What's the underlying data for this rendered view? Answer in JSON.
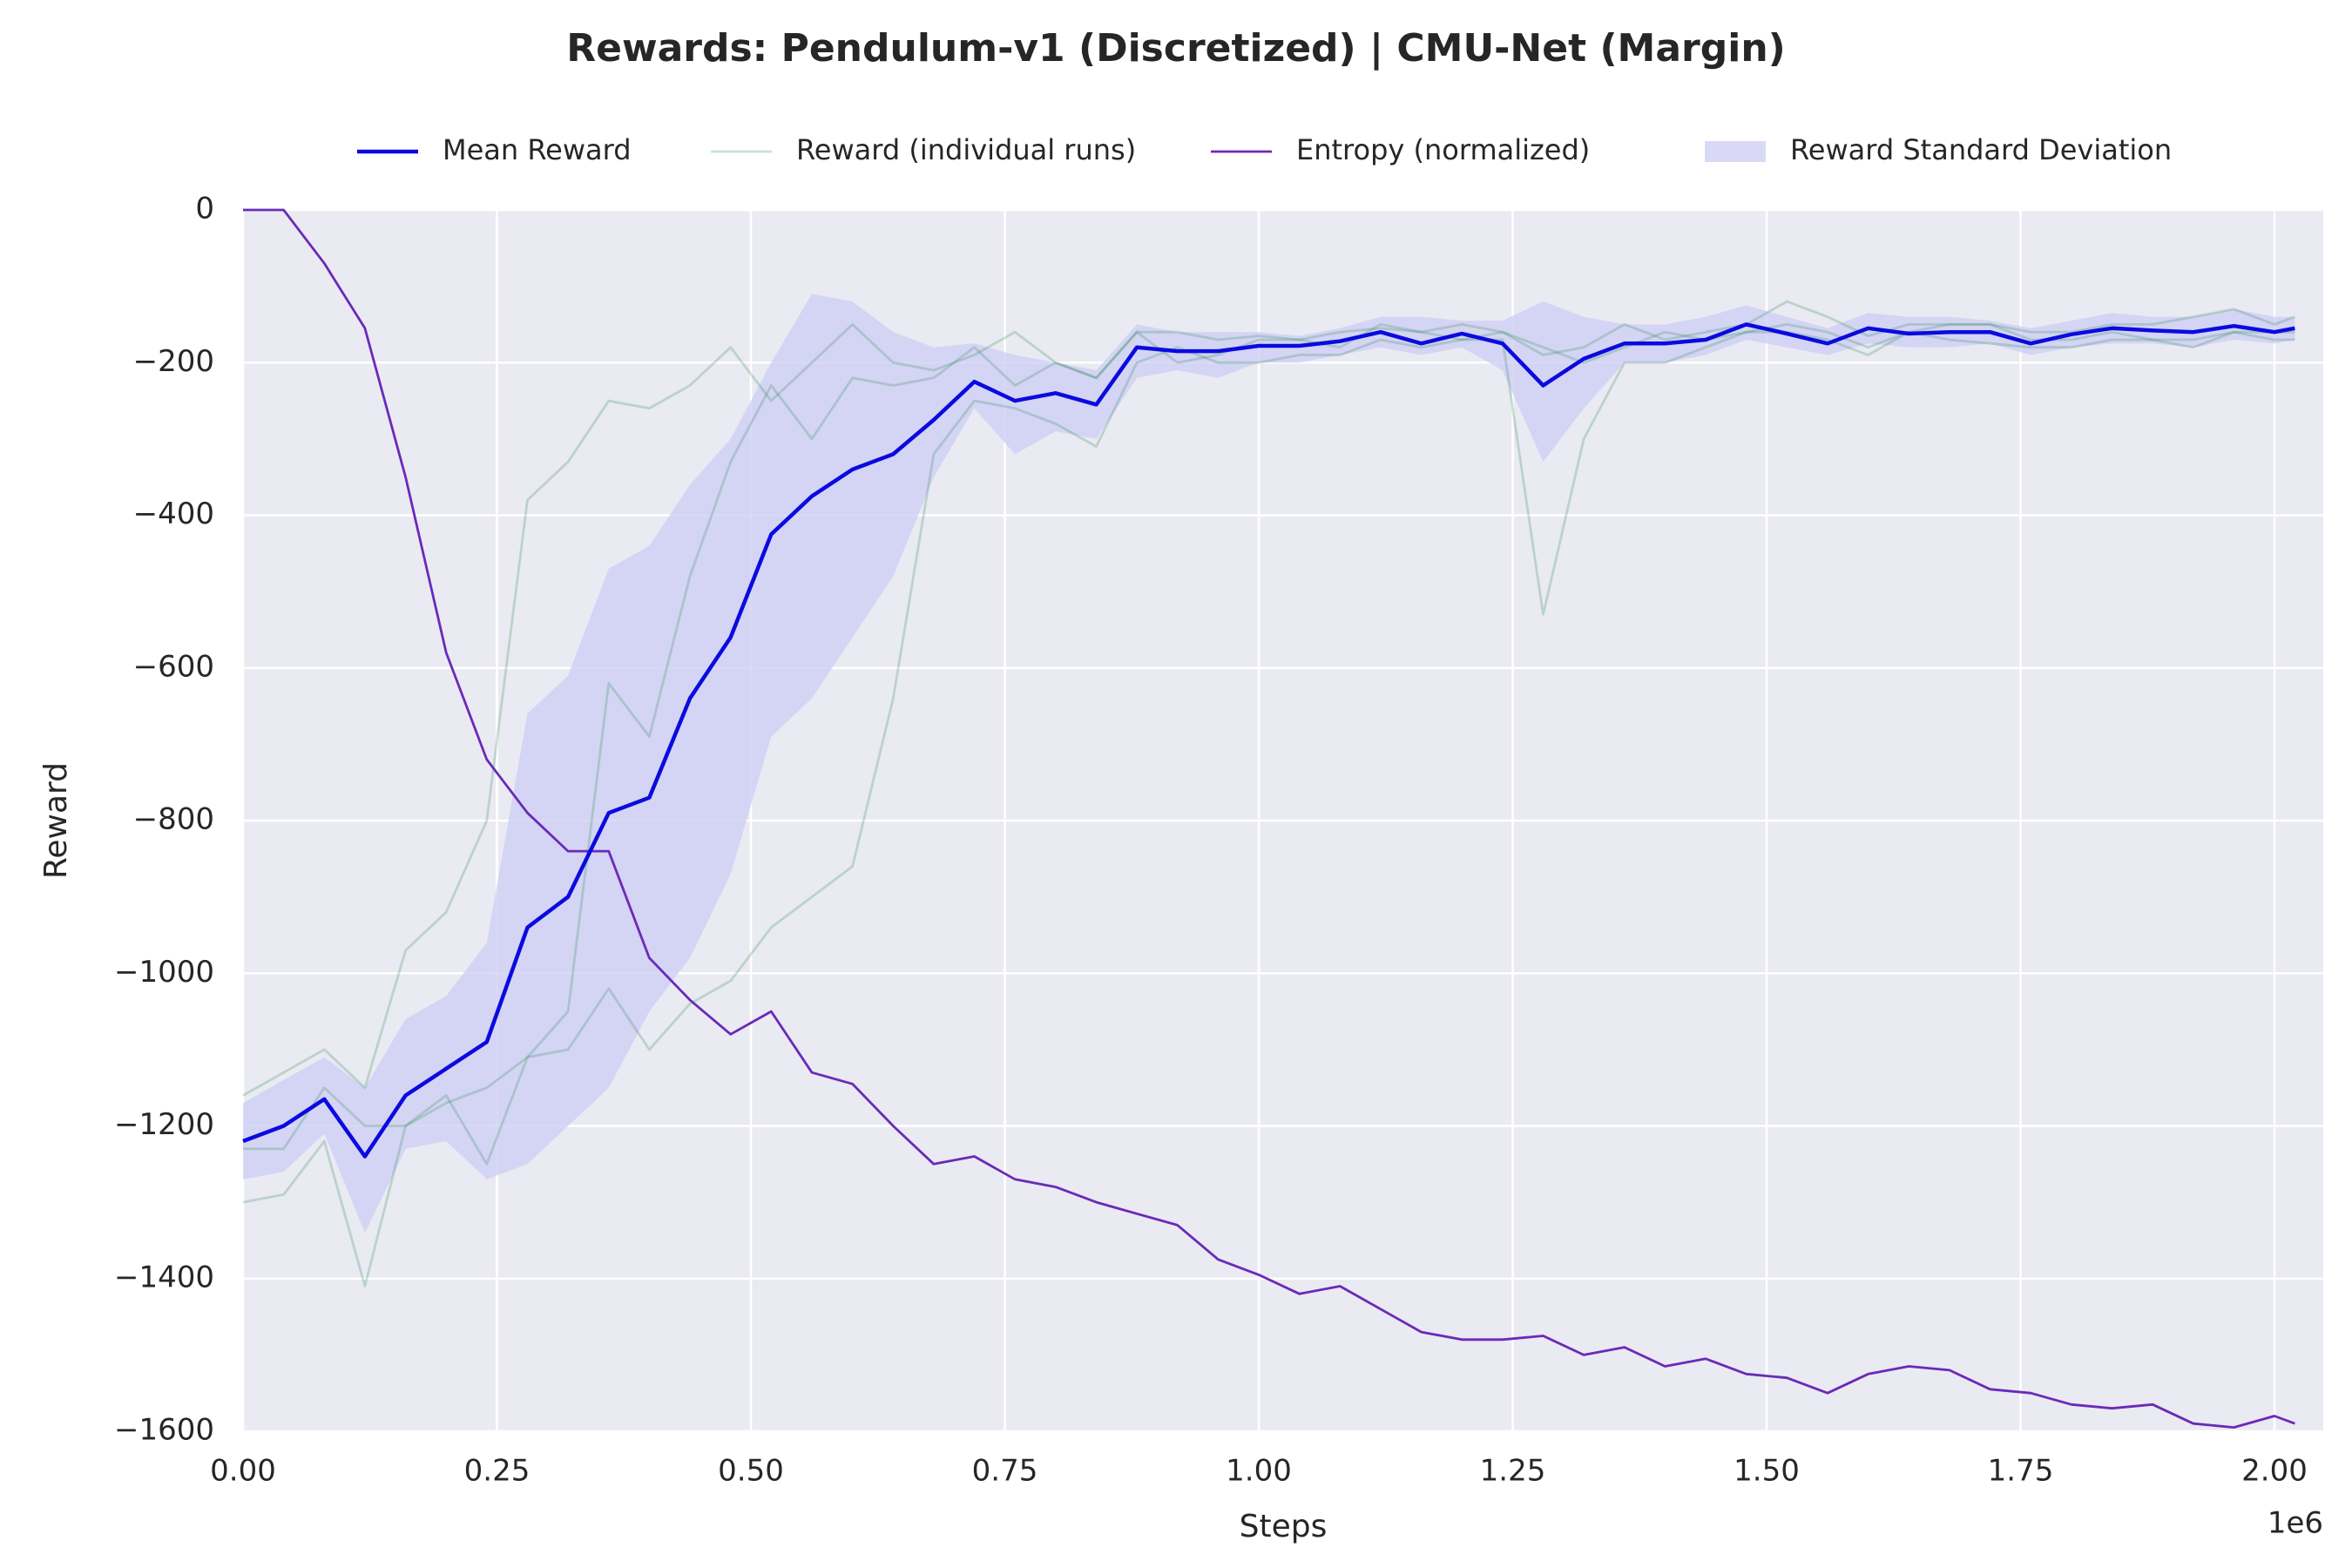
{
  "chart_data": {
    "type": "line",
    "title": "Rewards: Pendulum-v1 (Discretized) | CMU-Net (Margin)",
    "x_label": "Steps",
    "y_label": "Reward",
    "x_offset_label": "1e6",
    "legend": "top",
    "grid": true,
    "x": [
      0,
      40000,
      80000,
      120000,
      160000,
      200000,
      240000,
      280000,
      320000,
      360000,
      400000,
      440000,
      480000,
      520000,
      560000,
      600000,
      640000,
      680000,
      720000,
      760000,
      800000,
      840000,
      880000,
      920000,
      960000,
      1000000,
      1040000,
      1080000,
      1120000,
      1160000,
      1200000,
      1240000,
      1280000,
      1320000,
      1360000,
      1400000,
      1440000,
      1480000,
      1520000,
      1560000,
      1600000,
      1640000,
      1680000,
      1720000,
      1760000,
      1800000,
      1840000,
      1880000,
      1920000,
      1960000,
      2000000,
      2020000
    ],
    "xlim": [
      0,
      2048000
    ],
    "xticks": [
      {
        "value": 0,
        "label": "0.00"
      },
      {
        "value": 250000,
        "label": "0.25"
      },
      {
        "value": 500000,
        "label": "0.50"
      },
      {
        "value": 750000,
        "label": "0.75"
      },
      {
        "value": 1000000,
        "label": "1.00"
      },
      {
        "value": 1250000,
        "label": "1.25"
      },
      {
        "value": 1500000,
        "label": "1.50"
      },
      {
        "value": 1750000,
        "label": "1.75"
      },
      {
        "value": 2000000,
        "label": "2.00"
      }
    ],
    "ylim": [
      -1600,
      0
    ],
    "yticks": [
      0,
      {
        "value": -200,
        "label": "−200"
      },
      {
        "value": -400,
        "label": "−400"
      },
      {
        "value": -600,
        "label": "−600"
      },
      {
        "value": -800,
        "label": "−800"
      },
      {
        "value": -1000,
        "label": "−1000"
      },
      {
        "value": -1200,
        "label": "−1200"
      },
      {
        "value": -1400,
        "label": "−1400"
      },
      {
        "value": -1600,
        "label": "−1600"
      }
    ],
    "series": [
      {
        "name": "Mean Reward",
        "color": "#0a0ae0",
        "values": [
          -1220,
          -1200,
          -1165,
          -1240,
          -1160,
          -1125,
          -1090,
          -940,
          -900,
          -790,
          -770,
          -640,
          -560,
          -425,
          -375,
          -340,
          -320,
          -275,
          -225,
          -250,
          -240,
          -255,
          -180,
          -185,
          -185,
          -178,
          -178,
          -172,
          -160,
          -175,
          -162,
          -175,
          -230,
          -195,
          -175,
          -175,
          -170,
          -150,
          -162,
          -175,
          -155,
          -162,
          -160,
          -160,
          -175,
          -163,
          -155,
          -158,
          -160,
          -152,
          -160,
          -155
        ]
      },
      {
        "name": "Reward (individual runs)",
        "color": "#2e8b57",
        "runs": [
          [
            -1160,
            -1130,
            -1100,
            -1150,
            -970,
            -920,
            -800,
            -380,
            -330,
            -250,
            -260,
            -230,
            -180,
            -250,
            -200,
            -150,
            -200,
            -210,
            -190,
            -160,
            -200,
            -220,
            -160,
            -160,
            -170,
            -165,
            -170,
            -160,
            -155,
            -160,
            -150,
            -160,
            -190,
            -180,
            -150,
            -170,
            -160,
            -150,
            -120,
            -140,
            -165,
            -150,
            -150,
            -150,
            -160,
            -160,
            -150,
            -150,
            -140,
            -130,
            -150,
            -140
          ],
          [
            -1230,
            -1230,
            -1150,
            -1200,
            -1200,
            -1170,
            -1150,
            -1110,
            -1050,
            -620,
            -690,
            -480,
            -330,
            -230,
            -300,
            -220,
            -230,
            -220,
            -180,
            -230,
            -200,
            -220,
            -160,
            -200,
            -190,
            -170,
            -170,
            -180,
            -150,
            -160,
            -170,
            -160,
            -180,
            -200,
            -180,
            -160,
            -170,
            -160,
            -150,
            -160,
            -180,
            -160,
            -150,
            -150,
            -170,
            -170,
            -160,
            -170,
            -170,
            -160,
            -160,
            -160
          ],
          [
            -1300,
            -1290,
            -1220,
            -1410,
            -1200,
            -1160,
            -1250,
            -1110,
            -1100,
            -1020,
            -1100,
            -1040,
            -1010,
            -940,
            -900,
            -860,
            -640,
            -320,
            -250,
            -260,
            -280,
            -310,
            -200,
            -180,
            -200,
            -200,
            -190,
            -190,
            -170,
            -180,
            -170,
            -170,
            -530,
            -300,
            -200,
            -200,
            -180,
            -160,
            -160,
            -170,
            -190,
            -160,
            -170,
            -175,
            -180,
            -180,
            -170,
            -170,
            -180,
            -160,
            -170,
            -170
          ]
        ]
      },
      {
        "name": "Entropy (normalized)",
        "color": "#6a2ab8",
        "values": [
          0,
          0,
          -70,
          -155,
          -350,
          -580,
          -720,
          -790,
          -840,
          -840,
          -980,
          -1035,
          -1080,
          -1050,
          -1130,
          -1145,
          -1200,
          -1250,
          -1240,
          -1270,
          -1280,
          -1300,
          -1315,
          -1330,
          -1375,
          -1395,
          -1420,
          -1410,
          -1440,
          -1470,
          -1480,
          -1480,
          -1475,
          -1500,
          -1490,
          -1515,
          -1505,
          -1525,
          -1530,
          -1550,
          -1525,
          -1515,
          -1520,
          -1545,
          -1550,
          -1565,
          -1570,
          -1565,
          -1590,
          -1595,
          -1580,
          -1590
        ]
      },
      {
        "name": "Reward Standard Deviation",
        "color": "#ccccf4",
        "lower": [
          -1270,
          -1260,
          -1210,
          -1340,
          -1230,
          -1220,
          -1270,
          -1250,
          -1200,
          -1150,
          -1050,
          -980,
          -870,
          -690,
          -640,
          -560,
          -480,
          -350,
          -260,
          -320,
          -290,
          -300,
          -220,
          -210,
          -220,
          -200,
          -200,
          -190,
          -180,
          -190,
          -180,
          -210,
          -330,
          -260,
          -200,
          -200,
          -190,
          -170,
          -180,
          -190,
          -175,
          -180,
          -180,
          -175,
          -190,
          -180,
          -175,
          -175,
          -180,
          -170,
          -175,
          -170
        ],
        "upper": [
          -1170,
          -1140,
          -1110,
          -1150,
          -1060,
          -1030,
          -960,
          -660,
          -610,
          -470,
          -440,
          -360,
          -300,
          -200,
          -110,
          -120,
          -160,
          -180,
          -175,
          -190,
          -200,
          -210,
          -150,
          -160,
          -160,
          -160,
          -165,
          -155,
          -140,
          -140,
          -145,
          -145,
          -120,
          -140,
          -150,
          -150,
          -140,
          -125,
          -140,
          -155,
          -135,
          -140,
          -140,
          -145,
          -155,
          -145,
          -135,
          -140,
          -140,
          -130,
          -140,
          -140
        ]
      }
    ]
  }
}
